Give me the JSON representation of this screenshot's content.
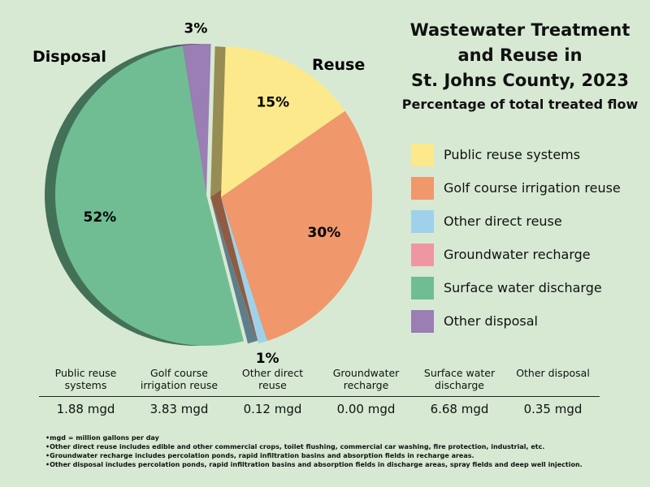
{
  "title_lines": [
    "Wastewater Treatment",
    "and Reuse in",
    "St. Johns County, 2023"
  ],
  "subtitle": "Percentage of total treated flow",
  "group_labels": {
    "disposal": "Disposal",
    "reuse": "Reuse"
  },
  "colors": {
    "background": "#d7e9d3",
    "public_reuse": "#fbe98c",
    "golf_reuse": "#f0976c",
    "other_reuse": "#9fd2ea",
    "groundwater": "#ef96a3",
    "surface_water": "#70bd93",
    "other_disposal": "#9a7eb4"
  },
  "chart_data": {
    "type": "pie",
    "title": "Wastewater Treatment and Reuse in St. Johns County, 2023",
    "subtitle": "Percentage of total treated flow",
    "slices": [
      {
        "name": "Public reuse systems",
        "group": "Reuse",
        "percent": 15,
        "label": "15%",
        "mgd": 1.88,
        "color": "#fbe98c"
      },
      {
        "name": "Golf course irrigation reuse",
        "group": "Reuse",
        "percent": 30,
        "label": "30%",
        "mgd": 3.83,
        "color": "#f0976c"
      },
      {
        "name": "Other direct reuse",
        "group": "Reuse",
        "percent": 1,
        "label": "1%",
        "mgd": 0.12,
        "color": "#9fd2ea"
      },
      {
        "name": "Groundwater recharge",
        "group": "Disposal",
        "percent": 0,
        "label": "",
        "mgd": 0.0,
        "color": "#ef96a3"
      },
      {
        "name": "Surface water discharge",
        "group": "Disposal",
        "percent": 52,
        "label": "52%",
        "mgd": 6.68,
        "color": "#70bd93"
      },
      {
        "name": "Other disposal",
        "group": "Disposal",
        "percent": 3,
        "label": "3%",
        "mgd": 0.35,
        "color": "#9a7eb4"
      }
    ],
    "legend_position": "right"
  },
  "legend": [
    {
      "label": "Public reuse systems",
      "color": "#fbe98c"
    },
    {
      "label": "Golf course irrigation reuse",
      "color": "#f0976c"
    },
    {
      "label": "Other direct reuse",
      "color": "#9fd2ea"
    },
    {
      "label": "Groundwater recharge",
      "color": "#ef96a3"
    },
    {
      "label": "Surface water discharge",
      "color": "#70bd93"
    },
    {
      "label": "Other disposal",
      "color": "#9a7eb4"
    }
  ],
  "table": {
    "headers": [
      [
        "Public reuse",
        "systems"
      ],
      [
        "Golf course",
        "irrigation reuse"
      ],
      [
        "Other direct",
        "reuse"
      ],
      [
        "Groundwater",
        "recharge"
      ],
      [
        "Surface water",
        "discharge"
      ],
      [
        "Other disposal",
        ""
      ]
    ],
    "values": [
      "1.88 mgd",
      "3.83 mgd",
      "0.12 mgd",
      "0.00 mgd",
      "6.68 mgd",
      "0.35 mgd"
    ]
  },
  "notes": [
    "mgd = million gallons per day",
    "Other direct reuse includes edible and other commercial crops, toilet flushing, commercial car washing, fire protection, industrial, etc.",
    "Groundwater recharge includes percolation ponds, rapid infiltration basins and absorption fields in recharge areas.",
    "Other disposal includes percolation ponds, rapid infiltration basins and absorption fields in discharge areas, spray fields and deep well injection."
  ]
}
